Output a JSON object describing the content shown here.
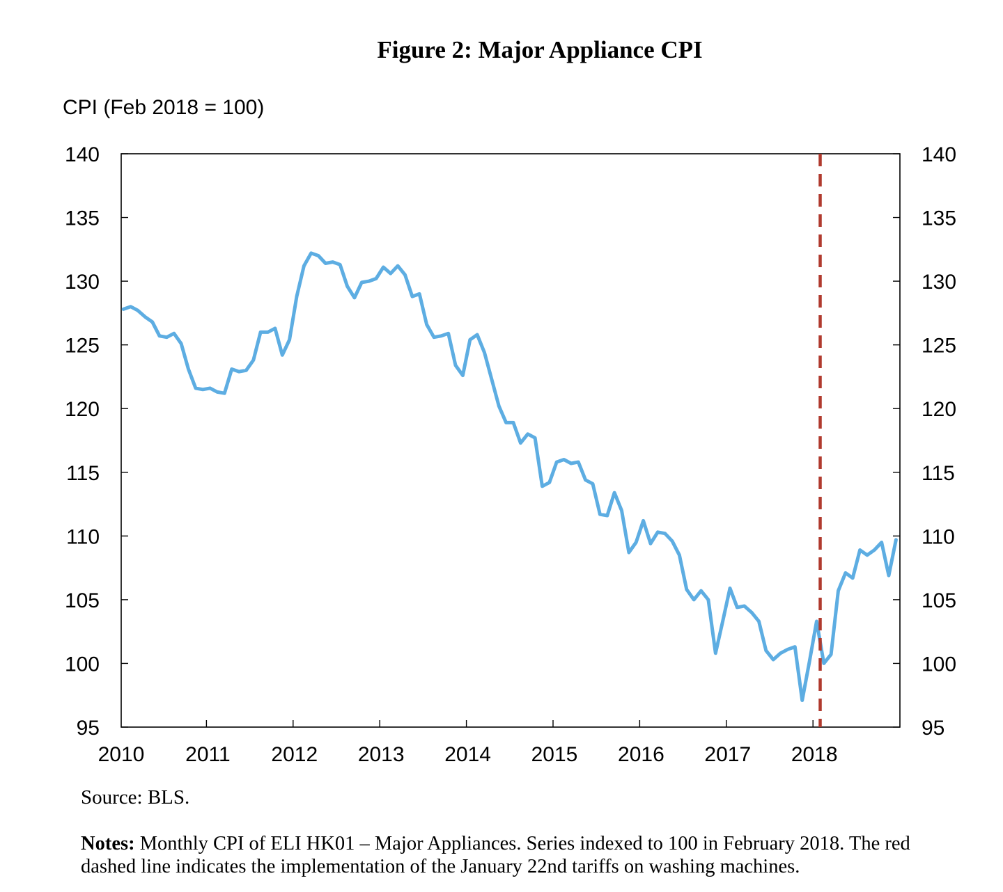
{
  "figure": {
    "title": "Figure 2: Major Appliance CPI",
    "source": "Source: BLS.",
    "notes_label": "Notes:",
    "notes_text": "Monthly CPI of ELI HK01 – Major Appliances. Series indexed to 100 in February 2018. The red dashed line indicates the implementation of the January 22nd tariffs on washing machines."
  },
  "colors": {
    "series": "#5DADE2",
    "marker": "#B03A2E",
    "axis": "#000000"
  },
  "chart_data": {
    "type": "line",
    "ylabel": "CPI (Feb 2018 = 100)",
    "xlabel": "",
    "ylim": [
      95,
      140
    ],
    "yticks": [
      95,
      100,
      105,
      110,
      115,
      120,
      125,
      130,
      135,
      140
    ],
    "xlim": [
      2010,
      2019
    ],
    "xticks": [
      2010,
      2011,
      2012,
      2013,
      2014,
      2015,
      2016,
      2017,
      2018
    ],
    "grid": false,
    "dual_y_axis": true,
    "vertical_marker": {
      "x": 2018.083,
      "style": "dashed"
    },
    "series": [
      {
        "frequency": "monthly",
        "start": "2010-01",
        "values": [
          127.8,
          128.0,
          127.7,
          127.2,
          126.8,
          125.7,
          125.6,
          125.9,
          125.1,
          123.1,
          121.6,
          121.5,
          121.6,
          121.3,
          121.2,
          123.1,
          122.9,
          123.0,
          123.8,
          126.0,
          126.0,
          126.3,
          124.2,
          125.4,
          128.8,
          131.2,
          132.2,
          132.0,
          131.4,
          131.5,
          131.3,
          129.6,
          128.7,
          129.9,
          130.0,
          130.2,
          131.1,
          130.6,
          131.2,
          130.5,
          128.8,
          129.0,
          126.6,
          125.6,
          125.7,
          125.9,
          123.4,
          122.6,
          125.4,
          125.8,
          124.4,
          122.3,
          120.2,
          118.9,
          118.9,
          117.3,
          118.0,
          117.7,
          113.9,
          114.2,
          115.8,
          116.0,
          115.7,
          115.8,
          114.4,
          114.1,
          111.7,
          111.6,
          113.4,
          112.0,
          108.7,
          109.5,
          111.2,
          109.4,
          110.3,
          110.2,
          109.6,
          108.5,
          105.8,
          105.0,
          105.7,
          105.0,
          100.8,
          103.3,
          105.9,
          104.4,
          104.5,
          104.0,
          103.3,
          101.0,
          100.3,
          100.8,
          101.1,
          101.3,
          97.1,
          100.1,
          103.3,
          100.0,
          100.7,
          105.7,
          107.1,
          106.7,
          108.9,
          108.5,
          108.9,
          109.5,
          106.9,
          109.7
        ]
      }
    ]
  }
}
